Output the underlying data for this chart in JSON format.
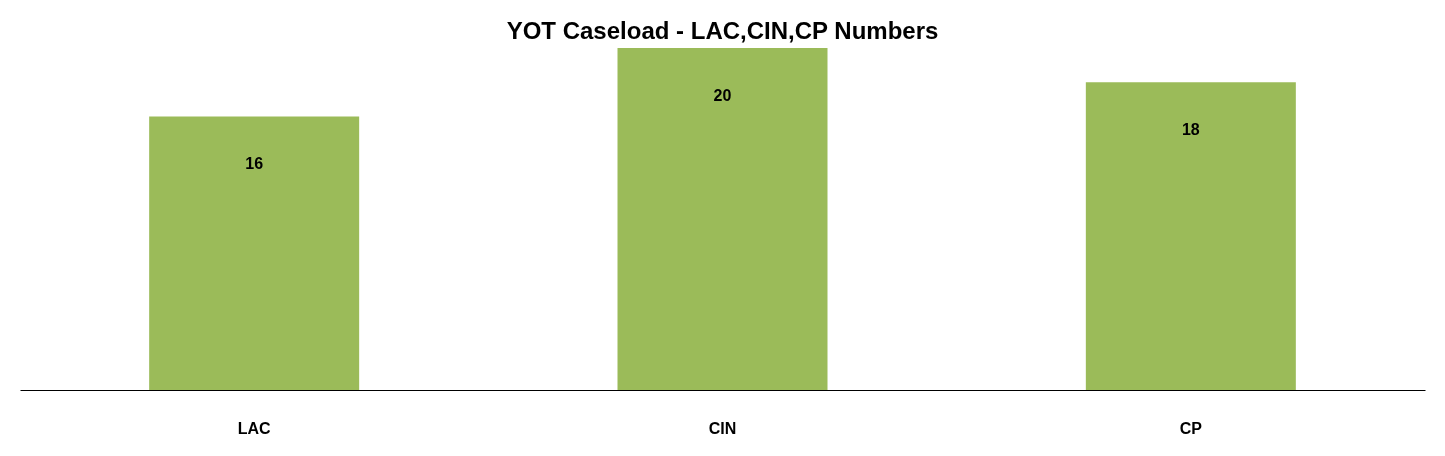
{
  "chart_data": {
    "type": "bar",
    "title": "YOT Caseload - LAC,CIN,CP Numbers",
    "categories": [
      "LAC",
      "CIN",
      "CP"
    ],
    "values": [
      16,
      20,
      18
    ],
    "color": "#9bbb59",
    "data_labels": true,
    "grid": false
  }
}
